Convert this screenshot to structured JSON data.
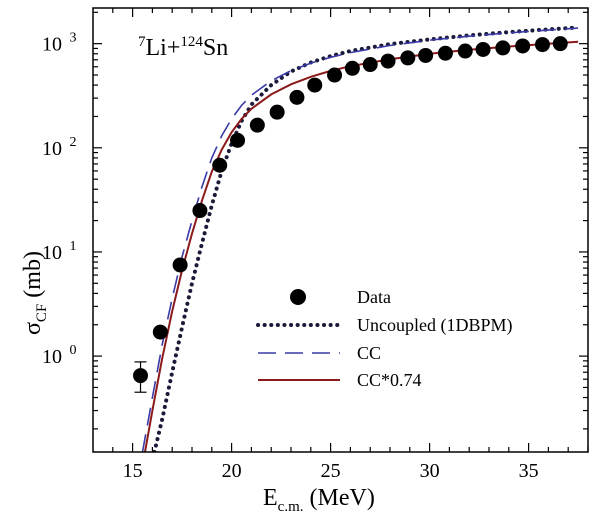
{
  "chart_data": {
    "type": "scatter",
    "title": "",
    "annotation": {
      "pre": "7",
      "mid": "Li+",
      "sup": "124",
      "post": "Sn"
    },
    "xlabel": {
      "main": "E",
      "sub": "c.m.",
      "unit": " (MeV)"
    },
    "ylabel": {
      "main": "σ",
      "sub": "CF",
      "unit": " (mb)"
    },
    "xlim": [
      13,
      38
    ],
    "ylim": [
      0.12,
      2200
    ],
    "yscale": "log",
    "x_ticks": [
      15,
      20,
      25,
      30,
      35
    ],
    "x_tick_labels": [
      "15",
      "20",
      "25",
      "30",
      "35"
    ],
    "y_ticks": [
      1,
      10,
      100,
      1000
    ],
    "y_tick_labels": [
      {
        "base": "10",
        "exp": "0"
      },
      {
        "base": "10",
        "exp": "1"
      },
      {
        "base": "10",
        "exp": "2"
      },
      {
        "base": "10",
        "exp": "3"
      }
    ],
    "legend_position": "bottom-right",
    "series": [
      {
        "name": "Data",
        "kind": "points",
        "color": "#000000",
        "x": [
          15.4,
          16.4,
          17.4,
          18.4,
          19.4,
          20.3,
          21.3,
          22.3,
          23.3,
          24.2,
          25.2,
          26.1,
          27.0,
          27.9,
          28.9,
          29.8,
          30.8,
          31.8,
          32.7,
          33.7,
          34.7,
          35.7,
          36.6
        ],
        "y": [
          0.65,
          1.7,
          7.5,
          25,
          68,
          118,
          165,
          220,
          305,
          400,
          500,
          580,
          630,
          680,
          730,
          770,
          810,
          850,
          880,
          910,
          950,
          980,
          1000
        ],
        "err_point": {
          "x": 15.4,
          "low": 0.45,
          "high": 0.88
        }
      },
      {
        "name": "Uncoupled (1DBPM)",
        "kind": "line",
        "style": "dotted",
        "color": "#1a1a3a",
        "x": [
          16.1,
          16.5,
          17,
          17.5,
          18,
          18.5,
          19,
          19.5,
          20,
          20.5,
          21,
          22,
          23,
          24,
          25,
          26,
          28,
          30,
          32,
          34,
          36,
          37.5
        ],
        "y": [
          0.12,
          0.25,
          0.7,
          1.9,
          5,
          12,
          28,
          60,
          110,
          180,
          260,
          400,
          540,
          660,
          760,
          850,
          990,
          1100,
          1200,
          1290,
          1370,
          1430
        ]
      },
      {
        "name": "CC",
        "kind": "line",
        "style": "dashed",
        "color": "#3a3aa8",
        "x": [
          15.5,
          16,
          16.5,
          17,
          17.5,
          18,
          18.5,
          19,
          19.5,
          20,
          20.5,
          21,
          22,
          23,
          24,
          25,
          26,
          28,
          30,
          32,
          34,
          36,
          37.5
        ],
        "y": [
          0.12,
          0.4,
          1.3,
          3.6,
          9,
          20,
          42,
          80,
          130,
          190,
          255,
          320,
          440,
          550,
          650,
          740,
          820,
          960,
          1080,
          1180,
          1270,
          1350,
          1410
        ]
      },
      {
        "name": "CC*0.74",
        "kind": "line",
        "style": "solid",
        "color": "#8b1a1a",
        "x": [
          15.55,
          16,
          16.5,
          17,
          17.5,
          18,
          18.5,
          19,
          19.5,
          20,
          20.5,
          21,
          22,
          23,
          24,
          25,
          26,
          28,
          30,
          32,
          34,
          36,
          37.5
        ],
        "y": [
          0.1,
          0.3,
          0.96,
          2.7,
          6.7,
          15,
          31,
          59,
          96,
          141,
          189,
          237,
          326,
          407,
          481,
          548,
          607,
          710,
          799,
          873,
          940,
          999,
          1043
        ]
      }
    ]
  }
}
